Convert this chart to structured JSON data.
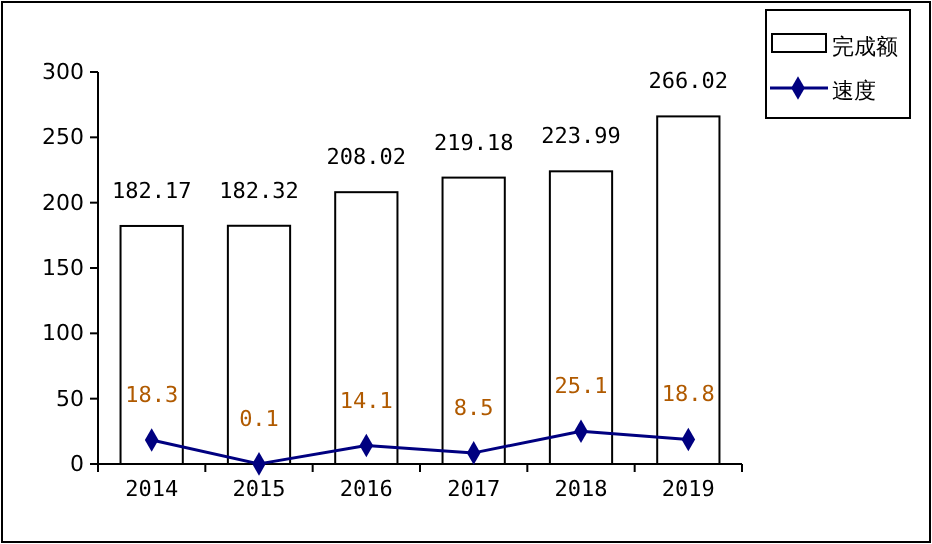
{
  "chart_data": {
    "type": "bar",
    "categories": [
      "2014",
      "2015",
      "2016",
      "2017",
      "2018",
      "2019"
    ],
    "series": [
      {
        "name": "完成额",
        "color": "#ffffff",
        "values": [
          182.17,
          182.32,
          208.02,
          219.18,
          223.99,
          266.02
        ]
      },
      {
        "name": "速度",
        "type": "line",
        "color": "#000080",
        "values": [
          18.3,
          0.1,
          14.1,
          8.5,
          25.1,
          18.8
        ]
      }
    ],
    "ylim": [
      0,
      300
    ],
    "yticks": [
      0,
      50,
      100,
      150,
      200,
      250,
      300
    ],
    "grid": false,
    "legend": "top right",
    "marker": "diamond",
    "line_style": "solid",
    "data_labels": true
  }
}
